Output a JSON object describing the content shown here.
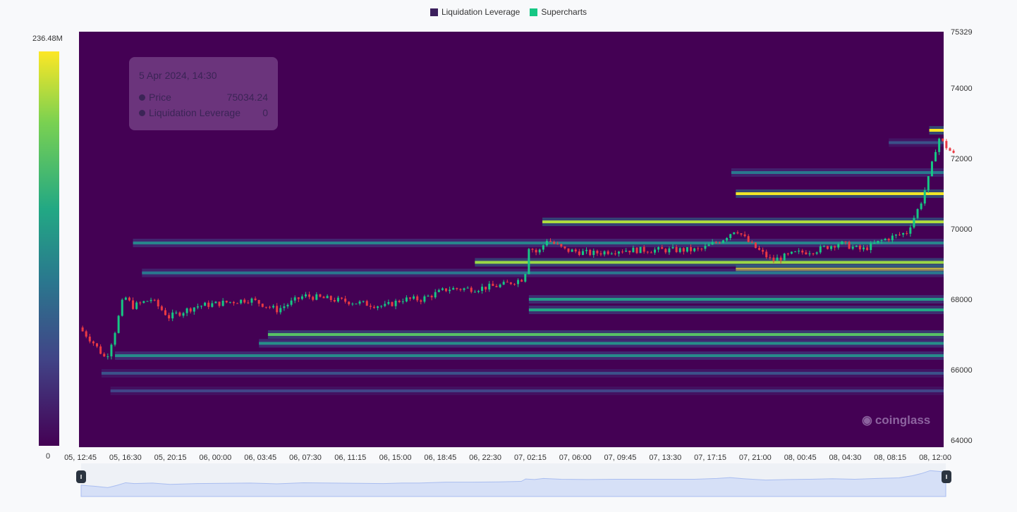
{
  "legend": {
    "items": [
      {
        "label": "Liquidation Leverage",
        "color": "#3b1f5c"
      },
      {
        "label": "Supercharts",
        "color": "#16c784"
      }
    ]
  },
  "colorbar": {
    "max_label": "236.48M",
    "min_label": "0"
  },
  "tooltip": {
    "date": "5 Apr 2024, 14:30",
    "price_label": "Price",
    "price_value": "75034.24",
    "leverage_label": "Liquidation Leverage",
    "leverage_value": "0"
  },
  "watermark": "coinglass",
  "colors": {
    "plot_bg": "#440154",
    "up": "#16c784",
    "down": "#ea3943"
  },
  "chart_data": {
    "type": "heatmap",
    "title": "",
    "ylim": [
      63800,
      75600
    ],
    "y_ticks": [
      64000,
      66000,
      68000,
      70000,
      72000,
      74000
    ],
    "y_top_label": "75329",
    "x_tick_labels": [
      "05, 12:45",
      "05, 16:30",
      "05, 20:15",
      "06, 00:00",
      "06, 03:45",
      "06, 07:30",
      "06, 11:15",
      "06, 15:00",
      "06, 18:45",
      "06, 22:30",
      "07, 02:15",
      "07, 06:00",
      "07, 09:45",
      "07, 13:30",
      "07, 17:15",
      "07, 21:00",
      "08, 00:45",
      "08, 04:30",
      "08, 08:15",
      "08, 12:00"
    ],
    "colorbar_range": [
      0,
      236480000
    ],
    "liquidation_bands": [
      {
        "price": 72800,
        "start": 18.9,
        "intensity": 1.0
      },
      {
        "price": 72450,
        "start": 18.0,
        "intensity": 0.25
      },
      {
        "price": 71600,
        "start": 14.5,
        "intensity": 0.4
      },
      {
        "price": 71000,
        "start": 14.6,
        "intensity": 0.98
      },
      {
        "price": 70200,
        "start": 10.3,
        "intensity": 0.88
      },
      {
        "price": 69600,
        "start": 1.2,
        "intensity": 0.45
      },
      {
        "price": 69050,
        "start": 8.8,
        "intensity": 0.85
      },
      {
        "price": 68850,
        "start": 14.6,
        "intensity": 1.0
      },
      {
        "price": 68750,
        "start": 1.4,
        "intensity": 0.4
      },
      {
        "price": 68000,
        "start": 10.0,
        "intensity": 0.55
      },
      {
        "price": 67700,
        "start": 10.0,
        "intensity": 0.6
      },
      {
        "price": 67000,
        "start": 4.2,
        "intensity": 0.72
      },
      {
        "price": 66750,
        "start": 4.0,
        "intensity": 0.5
      },
      {
        "price": 66400,
        "start": 0.8,
        "intensity": 0.48
      },
      {
        "price": 65900,
        "start": 0.5,
        "intensity": 0.25
      },
      {
        "price": 65400,
        "start": 0.7,
        "intensity": 0.2
      }
    ],
    "price_path": [
      [
        0,
        67200
      ],
      [
        0.3,
        66800
      ],
      [
        0.6,
        66300
      ],
      [
        0.8,
        67100
      ],
      [
        1.0,
        68100
      ],
      [
        1.2,
        67800
      ],
      [
        1.6,
        68000
      ],
      [
        2.0,
        67500
      ],
      [
        2.6,
        67800
      ],
      [
        3.2,
        67900
      ],
      [
        3.8,
        68000
      ],
      [
        4.4,
        67700
      ],
      [
        5.0,
        68100
      ],
      [
        5.6,
        68000
      ],
      [
        6.2,
        67900
      ],
      [
        6.8,
        67800
      ],
      [
        7.2,
        68000
      ],
      [
        7.6,
        68000
      ],
      [
        8.2,
        68300
      ],
      [
        8.8,
        68300
      ],
      [
        9.4,
        68400
      ],
      [
        9.9,
        68600
      ],
      [
        10.0,
        69500
      ],
      [
        10.2,
        69300
      ],
      [
        10.4,
        69700
      ],
      [
        10.8,
        69400
      ],
      [
        11.4,
        69300
      ],
      [
        12.0,
        69400
      ],
      [
        12.6,
        69400
      ],
      [
        13.2,
        69400
      ],
      [
        13.8,
        69400
      ],
      [
        14.3,
        69700
      ],
      [
        14.6,
        70000
      ],
      [
        14.9,
        69600
      ],
      [
        15.4,
        69100
      ],
      [
        15.9,
        69300
      ],
      [
        16.4,
        69400
      ],
      [
        16.9,
        69600
      ],
      [
        17.4,
        69400
      ],
      [
        17.9,
        69700
      ],
      [
        18.4,
        69900
      ],
      [
        18.7,
        70700
      ],
      [
        18.9,
        71500
      ],
      [
        19.1,
        72600
      ],
      [
        19.3,
        72300
      ],
      [
        19.45,
        72100
      ]
    ]
  }
}
